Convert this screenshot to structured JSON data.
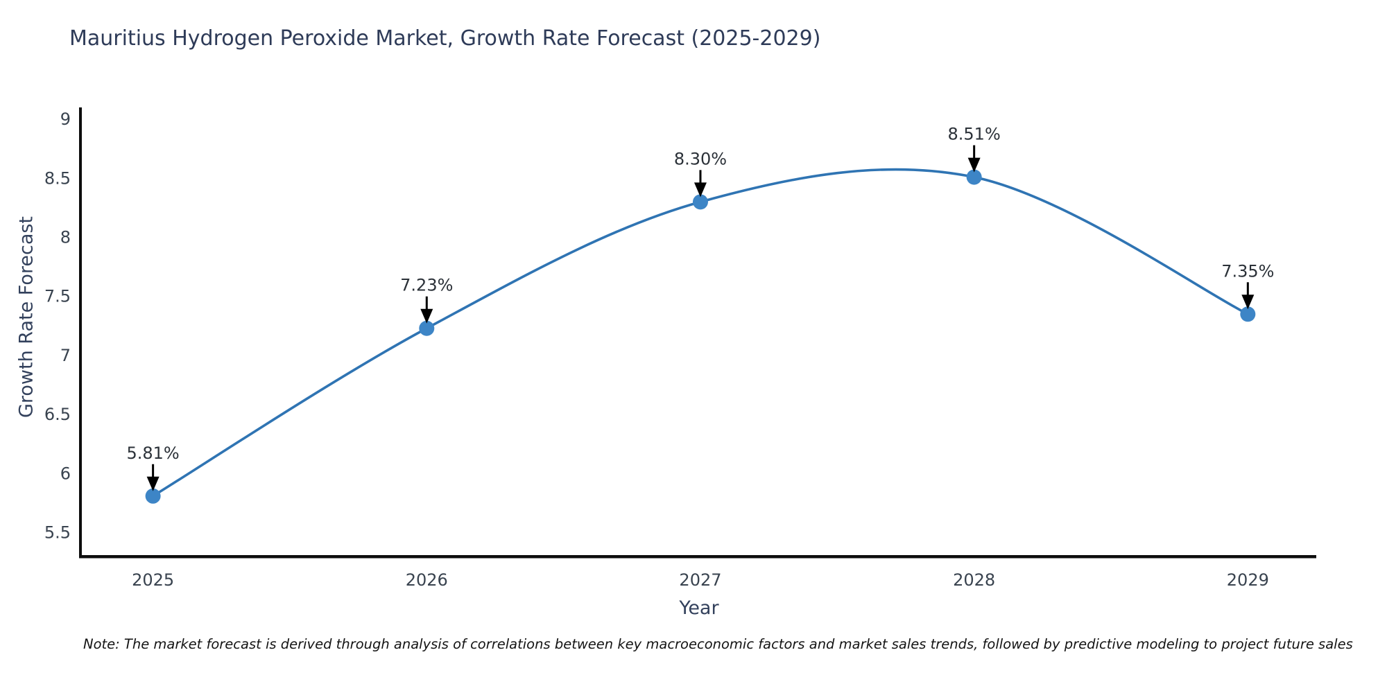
{
  "chart": {
    "title": "Mauritius Hydrogen Peroxide Market, Growth Rate Forecast (2025-2029)",
    "xlabel": "Year",
    "ylabel": "Growth Rate Forecast",
    "note": "Note: The market forecast is derived through analysis of correlations between key macroeconomic factors and market sales trends, followed by predictive modeling to project future sales",
    "colors": {
      "line": "#2f74b3",
      "marker": "#3d85c6",
      "axis": "#0d0d0d",
      "annotation_arrow": "#000000",
      "title_text": "#2e3b58",
      "tick_text": "#39434f"
    }
  },
  "chart_data": {
    "type": "line",
    "title": "Mauritius Hydrogen Peroxide Market, Growth Rate Forecast (2025-2029)",
    "xlabel": "Year",
    "ylabel": "Growth Rate Forecast",
    "x": [
      2025,
      2026,
      2027,
      2028,
      2029
    ],
    "series": [
      {
        "name": "Growth Rate Forecast",
        "values": [
          5.81,
          7.23,
          8.3,
          8.51,
          7.35
        ]
      }
    ],
    "point_labels": [
      "5.81%",
      "7.23%",
      "8.30%",
      "8.51%",
      "7.35%"
    ],
    "xticks": [
      "2025",
      "2026",
      "2027",
      "2028",
      "2029"
    ],
    "yticks": [
      5.5,
      6,
      6.5,
      7,
      7.5,
      8,
      8.5,
      9
    ],
    "xlim": [
      2024.74,
      2029.25
    ],
    "ylim": [
      5.31,
      9.1
    ],
    "grid": false,
    "legend": false,
    "smooth": true,
    "annotations": "black arrows pointing down at each data point with percent labels above"
  }
}
